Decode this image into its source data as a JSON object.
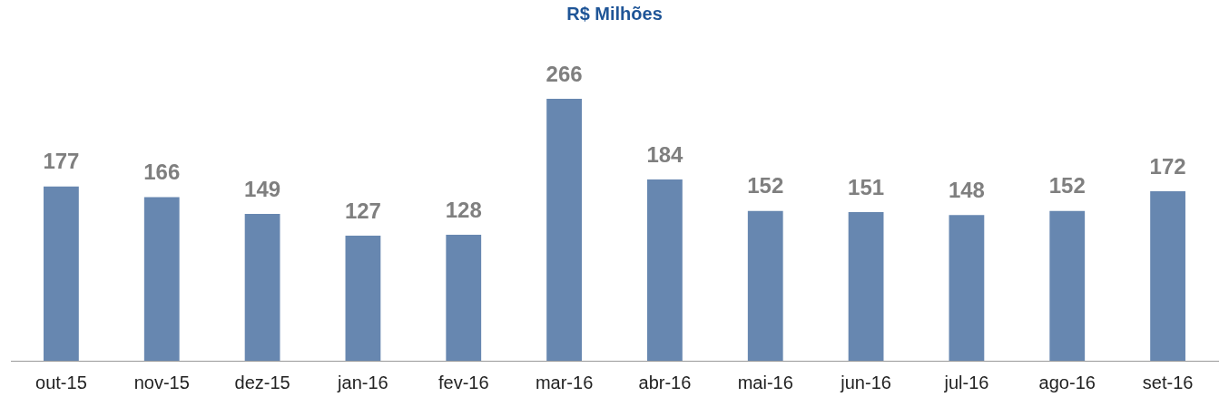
{
  "chart_data": {
    "type": "bar",
    "subtitle": "R$ Milhões",
    "categories": [
      "out-15",
      "nov-15",
      "dez-15",
      "jan-16",
      "fev-16",
      "mar-16",
      "abr-16",
      "mai-16",
      "jun-16",
      "jul-16",
      "ago-16",
      "set-16"
    ],
    "values": [
      177,
      166,
      149,
      127,
      128,
      266,
      184,
      152,
      151,
      148,
      152,
      172
    ],
    "color": "#6787b0",
    "data_labels": true,
    "grid": false,
    "legend": false
  }
}
